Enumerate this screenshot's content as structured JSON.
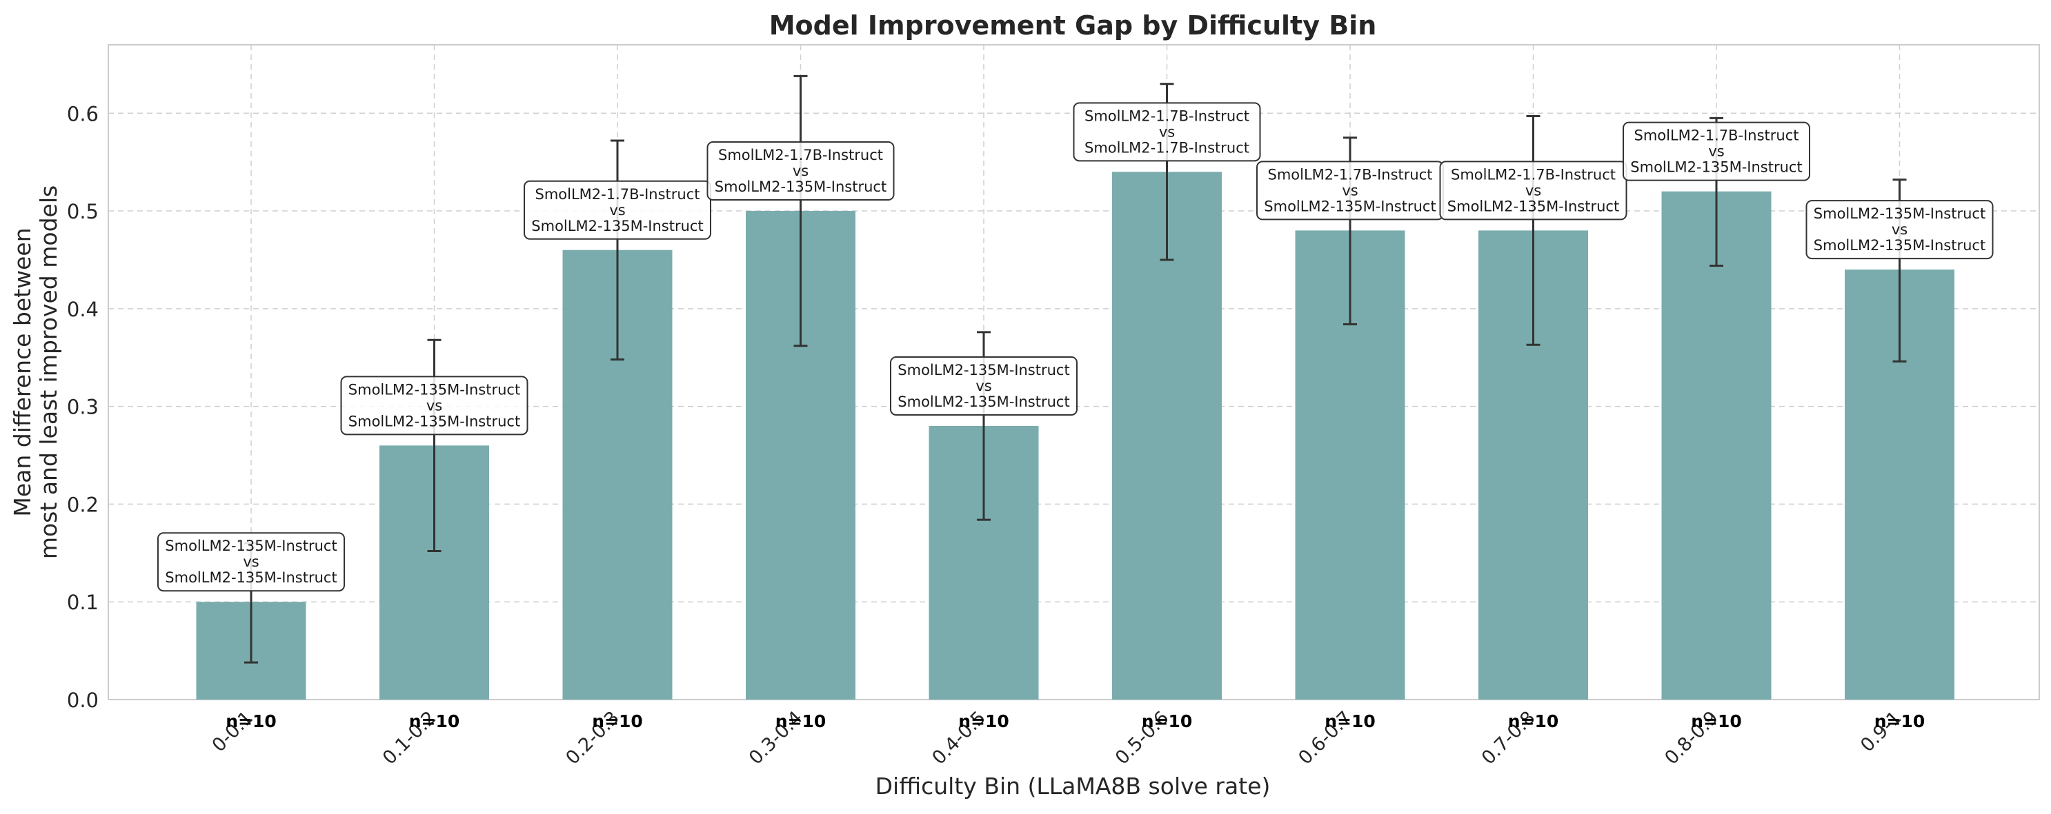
{
  "chart_data": {
    "type": "bar",
    "title": "Model Improvement Gap by Difficulty Bin",
    "xlabel": "Difficulty Bin (LLaMA8B solve rate)",
    "ylabel": [
      "Mean difference between",
      "most and least improved models"
    ],
    "ylim": [
      0,
      0.67
    ],
    "yticks": [
      "0.0",
      "0.1",
      "0.2",
      "0.3",
      "0.4",
      "0.5",
      "0.6"
    ],
    "grid": true,
    "bar_color": "#7aacad",
    "categories": [
      "0-0.1",
      "0.1-0.2",
      "0.2-0.3",
      "0.3-0.4",
      "0.4-0.5",
      "0.5-0.6",
      "0.6-0.7",
      "0.7-0.8",
      "0.8-0.9",
      "0.9-1"
    ],
    "values": [
      0.1,
      0.26,
      0.46,
      0.5,
      0.28,
      0.54,
      0.48,
      0.48,
      0.52,
      0.44
    ],
    "error_low": [
      0.038,
      0.152,
      0.348,
      0.362,
      0.184,
      0.45,
      0.384,
      0.363,
      0.444,
      0.346
    ],
    "error_high": [
      0.16,
      0.368,
      0.572,
      0.638,
      0.376,
      0.63,
      0.575,
      0.597,
      0.595,
      0.532
    ],
    "counts": [
      "n=10",
      "n=10",
      "n=10",
      "n=10",
      "n=10",
      "n=10",
      "n=10",
      "n=10",
      "n=10",
      "n=10"
    ],
    "annotations": [
      [
        "SmolLM2-135M-Instruct",
        "vs",
        "SmolLM2-135M-Instruct"
      ],
      [
        "SmolLM2-135M-Instruct",
        "vs",
        "SmolLM2-135M-Instruct"
      ],
      [
        "SmolLM2-1.7B-Instruct",
        "vs",
        "SmolLM2-135M-Instruct"
      ],
      [
        "SmolLM2-1.7B-Instruct",
        "vs",
        "SmolLM2-135M-Instruct"
      ],
      [
        "SmolLM2-135M-Instruct",
        "vs",
        "SmolLM2-135M-Instruct"
      ],
      [
        "SmolLM2-1.7B-Instruct",
        "vs",
        "SmolLM2-1.7B-Instruct"
      ],
      [
        "SmolLM2-1.7B-Instruct",
        "vs",
        "SmolLM2-135M-Instruct"
      ],
      [
        "SmolLM2-1.7B-Instruct",
        "vs",
        "SmolLM2-135M-Instruct"
      ],
      [
        "SmolLM2-1.7B-Instruct",
        "vs",
        "SmolLM2-135M-Instruct"
      ],
      [
        "SmolLM2-135M-Instruct",
        "vs",
        "SmolLM2-135M-Instruct"
      ]
    ]
  }
}
